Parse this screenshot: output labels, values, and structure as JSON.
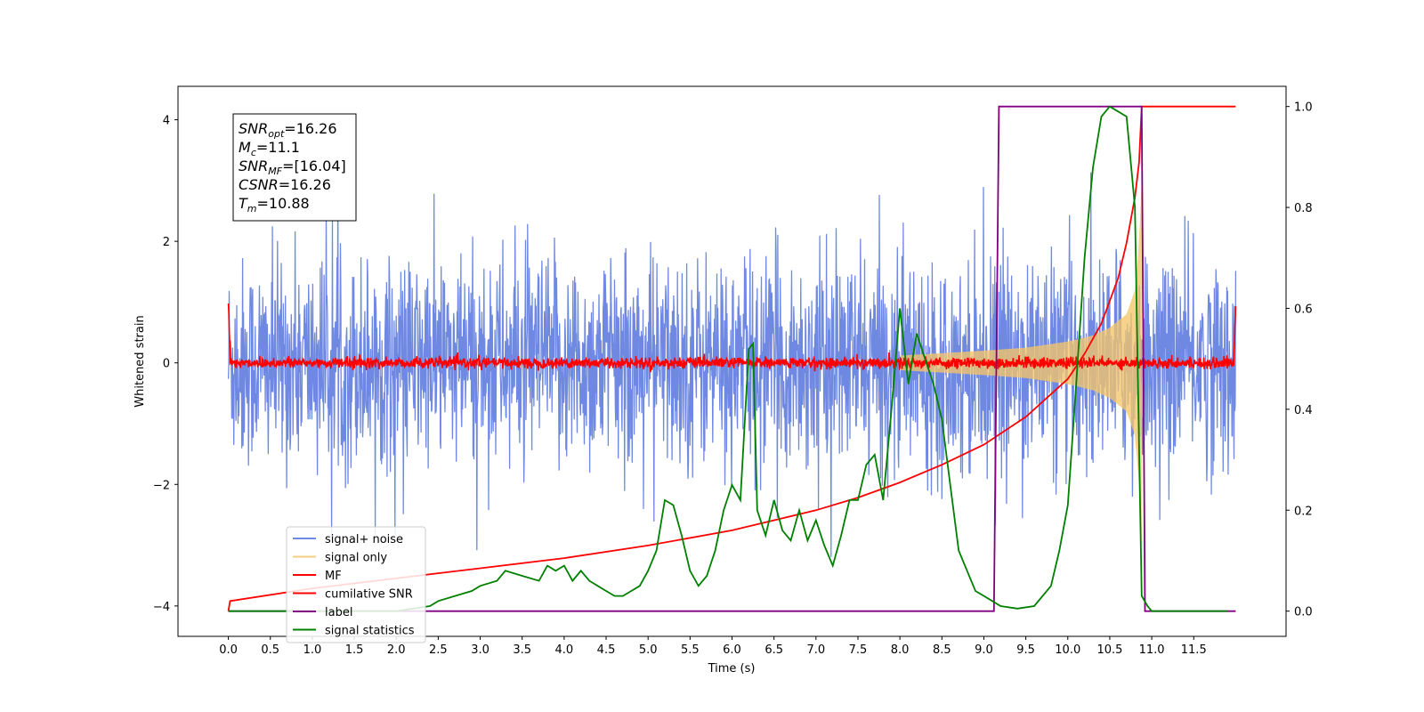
{
  "chart_data": {
    "type": "line",
    "xlabel": "Time (s)",
    "ylabel": "Whitened strain",
    "y2label": "",
    "xlim": [
      -0.6,
      12.6
    ],
    "ylim": [
      -4.5,
      4.55
    ],
    "y2lim": [
      -0.05,
      1.04
    ],
    "x_ticks": [
      0.0,
      0.5,
      1.0,
      1.5,
      2.0,
      2.5,
      3.0,
      3.5,
      4.0,
      4.5,
      5.0,
      5.5,
      6.0,
      6.5,
      7.0,
      7.5,
      8.0,
      8.5,
      9.0,
      9.5,
      10.0,
      10.5,
      11.0,
      11.5
    ],
    "x_tick_labels": [
      "0.0",
      "0.5",
      "1.0",
      "1.5",
      "2.0",
      "2.5",
      "3.0",
      "3.5",
      "4.0",
      "4.5",
      "5.0",
      "5.5",
      "6.0",
      "6.5",
      "7.0",
      "7.5",
      "8.0",
      "8.5",
      "9.0",
      "9.5",
      "10.0",
      "10.5",
      "11.0",
      "11.5"
    ],
    "y_ticks": [
      -4,
      -2,
      0,
      2,
      4
    ],
    "y_tick_labels": [
      "−4",
      "−2",
      "0",
      "2",
      "4"
    ],
    "y2_ticks": [
      0.0,
      0.2,
      0.4,
      0.6,
      0.8,
      1.0
    ],
    "y2_tick_labels": [
      "0.0",
      "0.2",
      "0.4",
      "0.6",
      "0.8",
      "1.0"
    ],
    "grid": false,
    "legend_position": "lower-left",
    "series": [
      {
        "name": "signal+ noise",
        "axis": "left",
        "color": "#6f89e3",
        "description_values": {
          "x_range": [
            0.0,
            12.0
          ],
          "noise_std": 0.85,
          "typical_peak": 3.0
        }
      },
      {
        "name": "signal only",
        "axis": "left",
        "color": "#f5c56a",
        "envelope": {
          "x": [
            8.0,
            8.5,
            9.0,
            9.5,
            10.0,
            10.3,
            10.5,
            10.7,
            10.8,
            10.85,
            10.88
          ],
          "amplitude": [
            0.12,
            0.16,
            0.2,
            0.25,
            0.35,
            0.45,
            0.58,
            0.8,
            1.2,
            2.0,
            3.0
          ]
        }
      },
      {
        "name": "MF",
        "axis": "left",
        "color": "#ff0000",
        "description_values": {
          "x_range": [
            0.0,
            12.0
          ],
          "noise_std": 0.045,
          "start_value": 1.0,
          "end_value": 0.9
        }
      },
      {
        "name": "cumilative SNR",
        "axis": "right",
        "color": "#ff0000",
        "x": [
          0.0,
          0.02,
          1.0,
          2.0,
          3.0,
          4.0,
          5.0,
          6.0,
          7.0,
          7.5,
          8.0,
          8.5,
          9.0,
          9.5,
          10.0,
          10.2,
          10.4,
          10.6,
          10.7,
          10.8,
          10.85,
          10.88,
          12.0
        ],
        "values": [
          0.0,
          0.02,
          0.045,
          0.065,
          0.085,
          0.105,
          0.13,
          0.16,
          0.2,
          0.225,
          0.255,
          0.29,
          0.33,
          0.385,
          0.46,
          0.51,
          0.57,
          0.66,
          0.73,
          0.82,
          0.89,
          1.0,
          1.0
        ]
      },
      {
        "name": "label",
        "axis": "right",
        "color": "#800080",
        "x": [
          0.0,
          9.12,
          9.18,
          10.88,
          10.92,
          12.0
        ],
        "values": [
          0.0,
          0.0,
          1.0,
          1.0,
          0.0,
          0.0
        ]
      },
      {
        "name": "signal statistics",
        "axis": "right",
        "color": "#008000",
        "x": [
          0.0,
          2.0,
          2.2,
          2.4,
          2.5,
          2.7,
          2.9,
          3.0,
          3.2,
          3.3,
          3.5,
          3.7,
          3.8,
          3.9,
          4.0,
          4.1,
          4.2,
          4.3,
          4.4,
          4.5,
          4.6,
          4.7,
          4.8,
          4.9,
          5.0,
          5.1,
          5.2,
          5.3,
          5.4,
          5.5,
          5.6,
          5.7,
          5.8,
          5.9,
          6.0,
          6.1,
          6.2,
          6.25,
          6.3,
          6.4,
          6.5,
          6.6,
          6.7,
          6.8,
          6.9,
          7.0,
          7.1,
          7.2,
          7.3,
          7.4,
          7.5,
          7.6,
          7.7,
          7.8,
          7.9,
          8.0,
          8.1,
          8.2,
          8.3,
          8.4,
          8.5,
          8.6,
          8.7,
          8.8,
          8.9,
          9.0,
          9.1,
          9.2,
          9.4,
          9.6,
          9.8,
          9.9,
          10.0,
          10.1,
          10.2,
          10.3,
          10.4,
          10.5,
          10.6,
          10.7,
          10.8,
          10.88,
          10.95,
          11.0,
          11.1,
          11.9
        ],
        "values": [
          0.0,
          0.0,
          0.005,
          0.01,
          0.02,
          0.03,
          0.04,
          0.05,
          0.06,
          0.08,
          0.07,
          0.06,
          0.09,
          0.08,
          0.09,
          0.06,
          0.08,
          0.06,
          0.05,
          0.04,
          0.03,
          0.03,
          0.04,
          0.05,
          0.08,
          0.12,
          0.22,
          0.21,
          0.15,
          0.08,
          0.05,
          0.07,
          0.12,
          0.2,
          0.25,
          0.22,
          0.52,
          0.53,
          0.2,
          0.15,
          0.22,
          0.16,
          0.14,
          0.2,
          0.14,
          0.18,
          0.13,
          0.09,
          0.15,
          0.22,
          0.22,
          0.29,
          0.31,
          0.22,
          0.4,
          0.6,
          0.45,
          0.55,
          0.5,
          0.45,
          0.38,
          0.25,
          0.12,
          0.08,
          0.04,
          0.03,
          0.02,
          0.01,
          0.005,
          0.01,
          0.05,
          0.12,
          0.21,
          0.45,
          0.7,
          0.88,
          0.98,
          1.0,
          0.99,
          0.98,
          0.8,
          0.03,
          0.01,
          0.0,
          0.0,
          0.0
        ]
      }
    ]
  },
  "info_box": {
    "lines": [
      {
        "base": "SNR",
        "sub": "opt",
        "value": "=16.26"
      },
      {
        "base": "M",
        "sub": "c",
        "value": "=11.1"
      },
      {
        "base": "SNR",
        "sub": "MF",
        "value": "=[16.04]"
      },
      {
        "base": "CSNR",
        "sub": "",
        "value": "=16.26"
      },
      {
        "base": "T",
        "sub": "m",
        "value": "=10.88"
      }
    ]
  }
}
